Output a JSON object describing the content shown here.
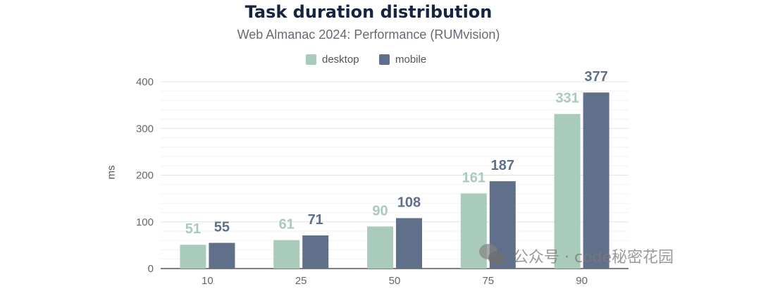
{
  "chart_data": {
    "type": "bar",
    "title": "Task duration distribution",
    "subtitle": "Web Almanac 2024: Performance (RUMvision)",
    "xlabel": "",
    "ylabel": "ms",
    "categories": [
      "10",
      "25",
      "50",
      "75",
      "90"
    ],
    "series": [
      {
        "name": "desktop",
        "color": "#a8cbbb",
        "values": [
          51,
          61,
          90,
          161,
          331
        ]
      },
      {
        "name": "mobile",
        "color": "#606f8a",
        "values": [
          55,
          71,
          108,
          187,
          377
        ]
      }
    ],
    "ylim": [
      0,
      400
    ],
    "yticks": [
      0,
      100,
      200,
      300,
      400
    ],
    "grid": true,
    "legend": "top-center",
    "data_labels": true
  },
  "watermark": {
    "icon": "wechat-icon",
    "text": "公众号 · code秘密花园"
  }
}
